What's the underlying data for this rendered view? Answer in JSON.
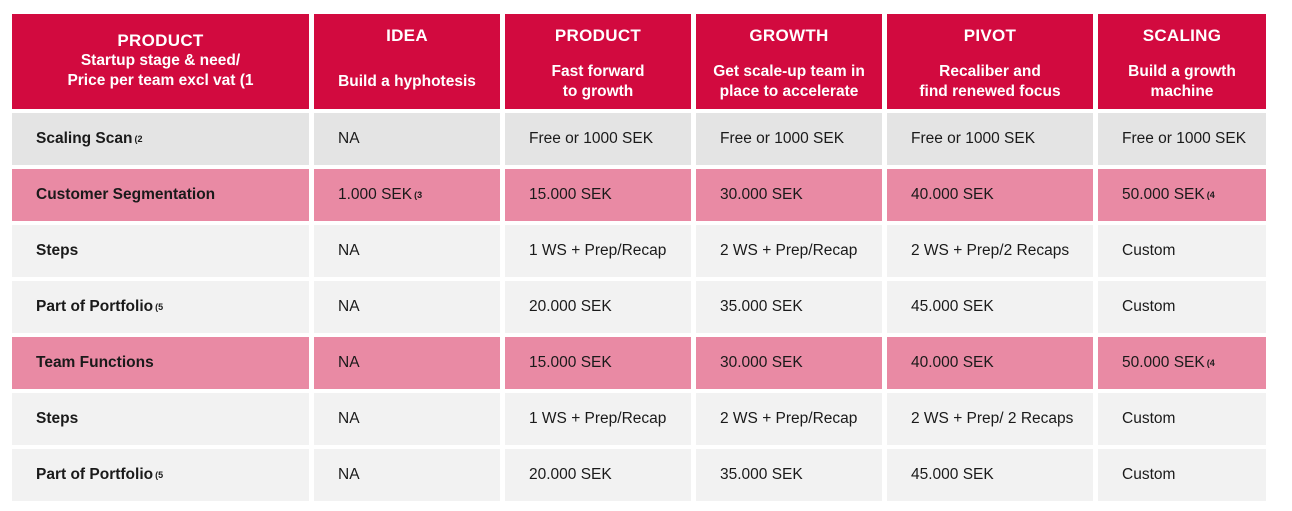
{
  "header": [
    {
      "title": "PRODUCT",
      "subtitle": "Startup stage & need/\nPrice per team excl vat (1"
    },
    {
      "title": "IDEA",
      "subtitle": "Build a hyphotesis"
    },
    {
      "title": "PRODUCT",
      "subtitle": "Fast forward\nto growth"
    },
    {
      "title": "GROWTH",
      "subtitle": "Get scale-up team in\nplace to accelerate"
    },
    {
      "title": "PIVOT",
      "subtitle": "Recaliber and\nfind renewed focus"
    },
    {
      "title": "SCALING",
      "subtitle": "Build a growth\nmachine"
    }
  ],
  "rows": [
    {
      "style": "grey",
      "label": "Scaling Scan",
      "label_note": "(2",
      "cells": [
        {
          "v": "NA"
        },
        {
          "v": "Free or 1000 SEK"
        },
        {
          "v": "Free or 1000 SEK"
        },
        {
          "v": "Free or 1000 SEK"
        },
        {
          "v": "Free or 1000 SEK"
        }
      ]
    },
    {
      "style": "pink",
      "label": "Customer Segmentation",
      "label_note": "",
      "cells": [
        {
          "v": "1.000 SEK",
          "n": "(3"
        },
        {
          "v": "15.000 SEK"
        },
        {
          "v": "30.000 SEK"
        },
        {
          "v": "40.000 SEK"
        },
        {
          "v": "50.000 SEK",
          "n": "(4"
        }
      ]
    },
    {
      "style": "light",
      "label": "Steps",
      "label_note": "",
      "cells": [
        {
          "v": "NA"
        },
        {
          "v": "1 WS + Prep/Recap"
        },
        {
          "v": "2 WS + Prep/Recap"
        },
        {
          "v": "2 WS + Prep/2 Recaps"
        },
        {
          "v": "Custom"
        }
      ]
    },
    {
      "style": "light",
      "label": "Part of Portfolio",
      "label_note": "(5",
      "cells": [
        {
          "v": "NA"
        },
        {
          "v": "20.000 SEK"
        },
        {
          "v": "35.000 SEK"
        },
        {
          "v": "45.000 SEK"
        },
        {
          "v": "Custom"
        }
      ]
    },
    {
      "style": "pink",
      "label": "Team Functions",
      "label_note": "",
      "cells": [
        {
          "v": "NA"
        },
        {
          "v": "15.000 SEK"
        },
        {
          "v": "30.000 SEK"
        },
        {
          "v": "40.000 SEK"
        },
        {
          "v": "50.000 SEK",
          "n": "(4"
        }
      ]
    },
    {
      "style": "light",
      "label": "Steps",
      "label_note": "",
      "cells": [
        {
          "v": "NA"
        },
        {
          "v": "1 WS + Prep/Recap"
        },
        {
          "v": "2 WS + Prep/Recap"
        },
        {
          "v": "2 WS + Prep/ 2 Recaps"
        },
        {
          "v": "Custom"
        }
      ]
    },
    {
      "style": "light",
      "label": "Part of Portfolio",
      "label_note": "(5",
      "cells": [
        {
          "v": "NA"
        },
        {
          "v": "20.000 SEK"
        },
        {
          "v": "35.000 SEK"
        },
        {
          "v": "45.000 SEK"
        },
        {
          "v": "Custom"
        }
      ]
    }
  ],
  "colors": {
    "header_bg": "#d20a3f",
    "pink_row": "#e98aa4",
    "grey_row": "#e4e4e4",
    "light_row": "#f2f2f2"
  }
}
